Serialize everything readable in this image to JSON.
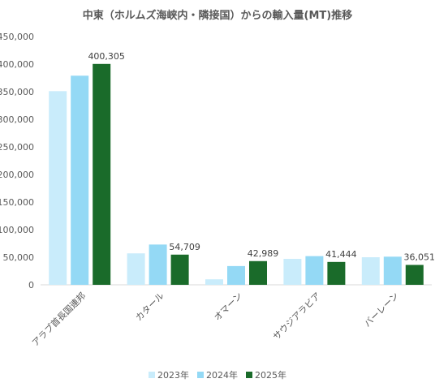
{
  "chart_data": {
    "type": "bar",
    "title": "中東（ホルムズ海峡内・隣接国）からの輸入量(MT)推移",
    "categories": [
      "アラブ首長国連邦",
      "カタール",
      "オマーン",
      "サウジアラビア",
      "バーレーン"
    ],
    "series": [
      {
        "name": "2023年",
        "color": "#c9ecfb",
        "values": [
          351000,
          57000,
          10000,
          47000,
          50000
        ]
      },
      {
        "name": "2024年",
        "color": "#94d9f5",
        "values": [
          379000,
          73000,
          34000,
          52000,
          51000
        ]
      },
      {
        "name": "2025年",
        "color": "#1a6b2a",
        "values": [
          400305,
          54709,
          42989,
          41444,
          36051
        ]
      }
    ],
    "data_labels": [
      "400,305",
      "54,709",
      "42,989",
      "41,444",
      "36,051"
    ],
    "ylim": [
      0,
      450000
    ],
    "yticks": [
      "0",
      "50,000",
      "100,000",
      "150,000",
      "200,000",
      "250,000",
      "300,000",
      "350,000",
      "400,000",
      "450,000"
    ],
    "legend_position": "bottom"
  }
}
